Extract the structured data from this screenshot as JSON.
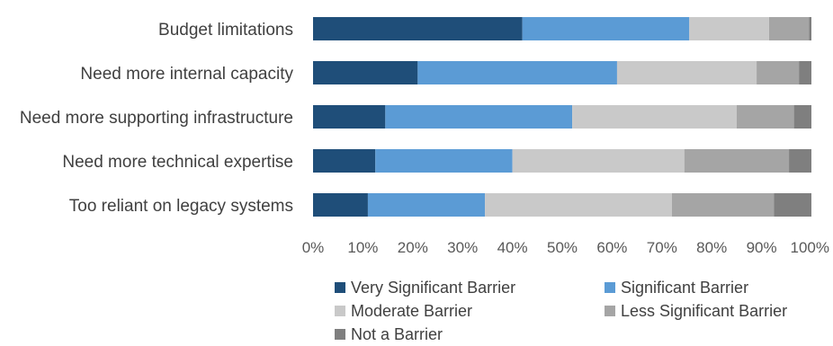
{
  "chart_data": {
    "type": "bar",
    "orientation": "horizontal",
    "stacked": true,
    "percent_stacked": true,
    "categories": [
      "Budget limitations",
      "Need more internal capacity",
      "Need more supporting infrastructure",
      "Need more technical expertise",
      "Too reliant on legacy systems"
    ],
    "series": [
      {
        "name": "Very Significant Barrier",
        "color": "#1f4e79",
        "values": [
          42,
          21,
          14.5,
          12.5,
          11
        ]
      },
      {
        "name": "Significant Barrier",
        "color": "#5b9bd5",
        "values": [
          33.5,
          40,
          37.5,
          27.5,
          23.5
        ]
      },
      {
        "name": "Moderate Barrier",
        "color": "#c9c9c9",
        "values": [
          16,
          28,
          33,
          34.5,
          37.5
        ]
      },
      {
        "name": "Less Significant Barrier",
        "color": "#a5a5a5",
        "values": [
          8,
          8.5,
          11.5,
          21,
          20.5
        ]
      },
      {
        "name": "Not a Barrier",
        "color": "#7f7f7f",
        "values": [
          0.5,
          2.5,
          3.5,
          4.5,
          7.5
        ]
      }
    ],
    "x_ticks": [
      "0%",
      "10%",
      "20%",
      "30%",
      "40%",
      "50%",
      "60%",
      "70%",
      "80%",
      "90%",
      "100%"
    ],
    "xlim": [
      0,
      100
    ],
    "grid": false,
    "legend_position": "bottom"
  }
}
